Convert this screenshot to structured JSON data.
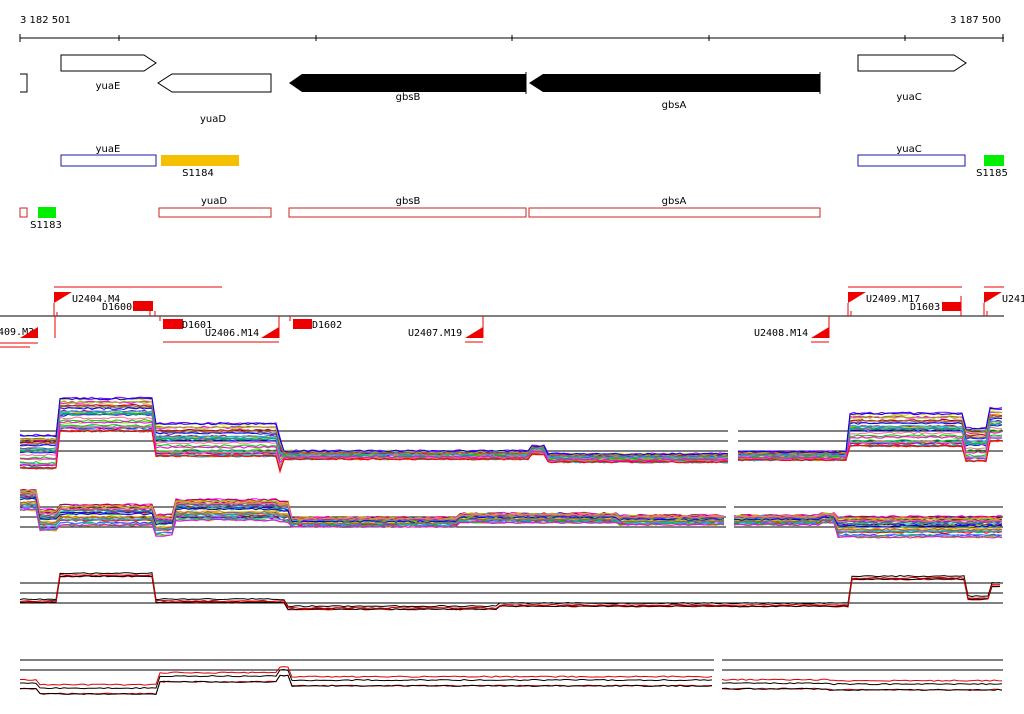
{
  "scale": {
    "start_label": "3 182 501",
    "end_label": "3 187 500",
    "start": 3182501,
    "end": 3187500
  },
  "genes": [
    {
      "name": "yuaE",
      "strand": "+",
      "style": "outline"
    },
    {
      "name": "yuaD",
      "strand": "-",
      "style": "outline"
    },
    {
      "name": "gbsB",
      "strand": "-",
      "style": "filled"
    },
    {
      "name": "gbsA",
      "strand": "-",
      "style": "filled"
    },
    {
      "name": "yuaC",
      "strand": "+",
      "style": "outline"
    }
  ],
  "plus_strand_features": [
    {
      "name": "yuaE",
      "type": "cds"
    },
    {
      "name": "S1184",
      "type": "rna",
      "color": "#f5c000"
    },
    {
      "name": "yuaC",
      "type": "cds"
    },
    {
      "name": "S1185",
      "type": "rna",
      "color": "#00ee00"
    }
  ],
  "minus_strand_features": [
    {
      "name": "yuaD",
      "type": "cds"
    },
    {
      "name": "gbsB",
      "type": "cds"
    },
    {
      "name": "gbsA",
      "type": "cds"
    },
    {
      "name": "S1183",
      "type": "rna",
      "color": "#00ee00"
    }
  ],
  "upstream_labels": [
    "U2404.M4",
    "U2409.M17",
    "U241"
  ],
  "downstream_labels": [
    "409.M3",
    "U2406.M14",
    "U2407.M19",
    "U2408.M14"
  ],
  "d_labels": [
    "D1600",
    "D1601",
    "D1602",
    "D1603"
  ],
  "colors": {
    "cds_plus": "#1a1aa8",
    "cds_minus": "#cc2222",
    "gene_fill": "#000000",
    "reg_red": "#ee0000",
    "profile_red": "#e00000",
    "profile_black": "#000000"
  }
}
